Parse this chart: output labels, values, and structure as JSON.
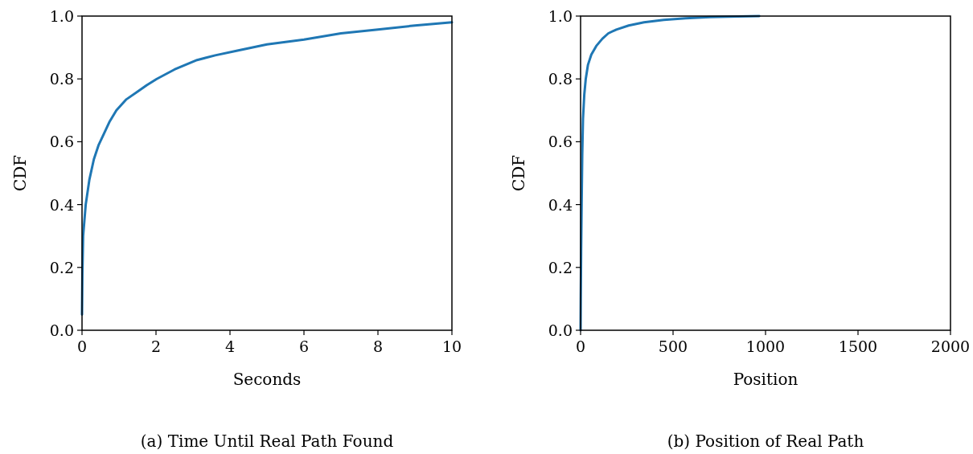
{
  "chart_data": [
    {
      "type": "line",
      "title": "(a) Time Until Real Path Found",
      "xlabel": "Seconds",
      "ylabel": "CDF",
      "xlim": [
        0,
        10
      ],
      "ylim": [
        0,
        1
      ],
      "xticks": [
        0,
        2,
        4,
        6,
        8,
        10
      ],
      "yticks": [
        {
          "value": 0,
          "label": "0.0"
        },
        {
          "value": 0.2,
          "label": "0.2"
        },
        {
          "value": 0.4,
          "label": "0.4"
        },
        {
          "value": 0.6,
          "label": "0.6"
        },
        {
          "value": 0.8,
          "label": "0.8"
        },
        {
          "value": 1,
          "label": "1.0"
        }
      ],
      "series": [
        {
          "color": "#1f77b4",
          "x": [
            0,
            0.01,
            0.03,
            0.1,
            0.2,
            0.32,
            0.45,
            0.57,
            0.75,
            0.93,
            1.2,
            1.51,
            1.75,
            2.02,
            2.5,
            3.11,
            3.6,
            4.2,
            5,
            6,
            7,
            8,
            9,
            10
          ],
          "values": [
            0.05,
            0.18,
            0.3,
            0.4,
            0.48,
            0.544,
            0.59,
            0.62,
            0.665,
            0.7,
            0.735,
            0.76,
            0.78,
            0.8,
            0.83,
            0.86,
            0.875,
            0.89,
            0.91,
            0.925,
            0.945,
            0.957,
            0.97,
            0.98
          ]
        }
      ]
    },
    {
      "type": "line",
      "title": "(b) Position of Real Path",
      "xlabel": "Position",
      "ylabel": "CDF",
      "xlim": [
        0,
        2000
      ],
      "ylim": [
        0,
        1
      ],
      "xticks": [
        0,
        500,
        1000,
        1500,
        2000
      ],
      "yticks": [
        {
          "value": 0,
          "label": "0.0"
        },
        {
          "value": 0.2,
          "label": "0.2"
        },
        {
          "value": 0.4,
          "label": "0.4"
        },
        {
          "value": 0.6,
          "label": "0.6"
        },
        {
          "value": 0.8,
          "label": "0.8"
        },
        {
          "value": 1,
          "label": "1.0"
        }
      ],
      "series": [
        {
          "color": "#1f77b4",
          "x": [
            0,
            1,
            3,
            6,
            9,
            13,
            20,
            28,
            40,
            58,
            85,
            118,
            150,
            193,
            260,
            343,
            450,
            568,
            700,
            850,
            966
          ],
          "values": [
            0,
            0.1,
            0.25,
            0.416,
            0.56,
            0.672,
            0.75,
            0.8,
            0.845,
            0.877,
            0.905,
            0.928,
            0.945,
            0.957,
            0.97,
            0.98,
            0.988,
            0.993,
            0.997,
            0.999,
            1
          ]
        }
      ]
    }
  ]
}
